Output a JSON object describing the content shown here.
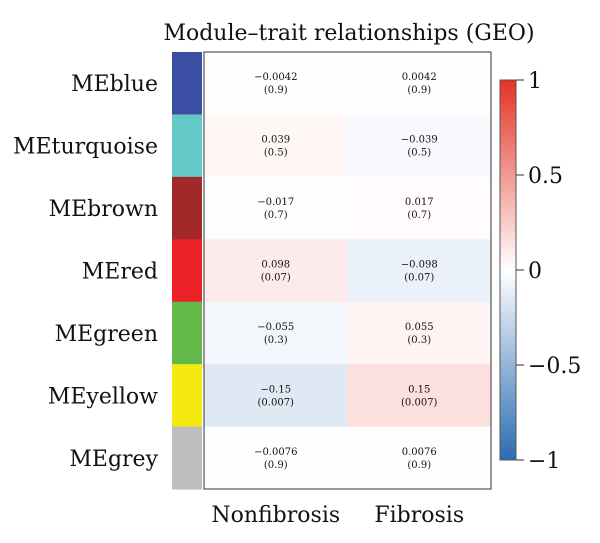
{
  "chart_data": {
    "type": "heatmap",
    "title": "Module–trait relationships (GEO)",
    "columns": [
      "Nonfibrosis",
      "Fibrosis"
    ],
    "rows": [
      {
        "name": "MEblue",
        "color": "#3a4fa3",
        "values": [
          -0.0042,
          0.0042
        ],
        "pvalues": [
          "(0.9)",
          "(0.9)"
        ],
        "labels": [
          "−0.0042",
          "0.0042"
        ]
      },
      {
        "name": "MEturquoise",
        "color": "#62c9c6",
        "values": [
          0.039,
          -0.039
        ],
        "pvalues": [
          "(0.5)",
          "(0.5)"
        ],
        "labels": [
          "0.039",
          "−0.039"
        ]
      },
      {
        "name": "MEbrown",
        "color": "#a3282a",
        "values": [
          -0.017,
          0.017
        ],
        "pvalues": [
          "(0.7)",
          "(0.7)"
        ],
        "labels": [
          "−0.017",
          "0.017"
        ]
      },
      {
        "name": "MEred",
        "color": "#ec2228",
        "values": [
          0.098,
          -0.098
        ],
        "pvalues": [
          "(0.07)",
          "(0.07)"
        ],
        "labels": [
          "0.098",
          "−0.098"
        ]
      },
      {
        "name": "MEgreen",
        "color": "#63b94a",
        "values": [
          -0.055,
          0.055
        ],
        "pvalues": [
          "(0.3)",
          "(0.3)"
        ],
        "labels": [
          "−0.055",
          "0.055"
        ]
      },
      {
        "name": "MEyellow",
        "color": "#f4ea12",
        "values": [
          -0.15,
          0.15
        ],
        "pvalues": [
          "(0.007)",
          "(0.007)"
        ],
        "labels": [
          "−0.15",
          "0.15"
        ]
      },
      {
        "name": "MEgrey",
        "color": "#bebebe",
        "values": [
          -0.0076,
          0.0076
        ],
        "pvalues": [
          "(0.9)",
          "(0.9)"
        ],
        "labels": [
          "−0.0076",
          "0.0076"
        ]
      }
    ],
    "colorbar": {
      "range": [
        -1,
        1
      ],
      "ticks": [
        1,
        0.5,
        0,
        -0.5,
        -1
      ],
      "tick_labels": [
        "1",
        "0.5",
        "0",
        "−0.5",
        "−1"
      ],
      "low_color": "#2b6cb3",
      "mid_color": "#ffffff",
      "high_color": "#e53325"
    }
  }
}
